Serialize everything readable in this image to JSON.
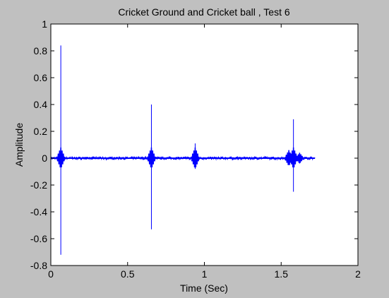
{
  "figure": {
    "background": "#c0c0c0",
    "axes_background": "#ffffff"
  },
  "chart_data": {
    "type": "line",
    "title": "Cricket Ground and Cricket ball , Test 6",
    "xlabel": "Time (Sec)",
    "ylabel": "Amplitude",
    "xlim": [
      0,
      2
    ],
    "ylim": [
      -0.8,
      1
    ],
    "xticks": [
      0,
      0.5,
      1,
      1.5,
      2
    ],
    "xtick_labels": [
      "0",
      "0.5",
      "1",
      "1.5",
      "2"
    ],
    "yticks": [
      -0.8,
      -0.6,
      -0.4,
      -0.2,
      0,
      0.2,
      0.4,
      0.6,
      0.8,
      1
    ],
    "ytick_labels": [
      "-0.8",
      "-0.6",
      "-0.4",
      "-0.2",
      "0",
      "0.2",
      "0.4",
      "0.6",
      "0.8",
      "1"
    ],
    "grid": false,
    "legend": false,
    "line_color": "#0000ff",
    "series": [
      {
        "signal_x_range": [
          0.0,
          1.72
        ],
        "baseline_noise_amplitude": 0.01,
        "events": [
          {
            "x": 0.065,
            "max": 0.84,
            "min": -0.72
          },
          {
            "x": 0.655,
            "max": 0.4,
            "min": -0.53
          },
          {
            "x": 0.94,
            "max": 0.11,
            "min": -0.08
          },
          {
            "x": 1.55,
            "max": 0.06,
            "min": -0.05
          },
          {
            "x": 1.58,
            "max": 0.29,
            "min": -0.25
          },
          {
            "x": 1.62,
            "max": 0.04,
            "min": -0.04
          }
        ]
      }
    ]
  }
}
